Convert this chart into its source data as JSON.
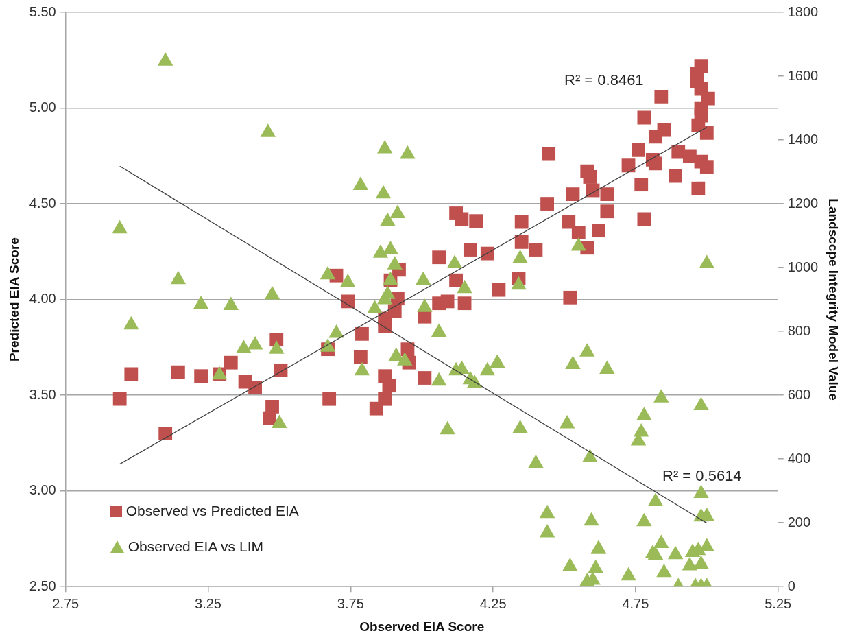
{
  "chart_data": {
    "type": "scatter",
    "xlabel": "Observed EIA Score",
    "ylabel": "Predicted EIA Score",
    "y2label": "Landsccpe Integrity Model Value",
    "xlim": [
      2.75,
      5.25
    ],
    "xticks": [
      2.75,
      3.25,
      3.75,
      4.25,
      4.75,
      5.25
    ],
    "ylim": [
      2.5,
      5.5
    ],
    "yticks": [
      {
        "value": 2.5,
        "label": "2.50"
      },
      {
        "value": 3,
        "label": "3.00"
      },
      {
        "value": 3.5,
        "label": "3.50"
      },
      {
        "value": 4,
        "label": "4.00"
      },
      {
        "value": 4.5,
        "label": "4.50"
      },
      {
        "value": 5,
        "label": "5.00"
      },
      {
        "value": 5.5,
        "label": "5.50"
      }
    ],
    "y2lim": [
      0,
      1800
    ],
    "y2ticks": [
      0,
      200,
      400,
      600,
      800,
      1000,
      1200,
      1400,
      1600,
      1800
    ],
    "grid": "y",
    "legend": "bottom left",
    "series": [
      {
        "name": "Observed vs Predicted EIA",
        "color": "#c0504d",
        "marker": "square",
        "x": [
          2.94,
          2.98,
          3.1,
          3.145,
          3.225,
          3.29,
          3.33,
          3.38,
          3.415,
          3.49,
          3.505,
          3.475,
          3.465,
          3.67,
          3.675,
          3.7,
          3.74,
          3.785,
          3.79,
          3.84,
          3.87,
          3.885,
          3.87,
          3.87,
          3.87,
          3.905,
          3.915,
          3.92,
          3.89,
          3.95,
          3.955,
          4.01,
          4.01,
          4.06,
          4.09,
          4.15,
          4.06,
          4.12,
          4.12,
          4.14,
          4.19,
          4.17,
          4.23,
          4.27,
          4.34,
          4.35,
          4.35,
          4.4,
          4.44,
          4.445,
          4.515,
          4.52,
          4.53,
          4.55,
          4.58,
          4.58,
          4.59,
          4.6,
          4.62,
          4.65,
          4.65,
          4.725,
          4.76,
          4.77,
          4.78,
          4.78,
          4.81,
          4.82,
          4.82,
          4.84,
          4.85,
          4.89,
          4.9,
          4.94,
          4.97,
          4.98,
          4.965,
          4.965,
          4.98,
          5.005,
          4.98,
          4.98,
          4.97,
          5.0,
          4.98,
          5.0
        ],
        "values": [
          3.48,
          3.61,
          3.3,
          3.62,
          3.6,
          3.61,
          3.67,
          3.57,
          3.54,
          3.79,
          3.63,
          3.44,
          3.38,
          3.74,
          3.48,
          4.125,
          3.99,
          3.7,
          3.82,
          3.43,
          3.6,
          3.55,
          3.48,
          3.86,
          3.9,
          3.94,
          4.005,
          4.155,
          4.1,
          3.74,
          3.67,
          3.59,
          3.91,
          3.98,
          3.99,
          3.98,
          4.22,
          4.1,
          4.45,
          4.42,
          4.41,
          4.26,
          4.24,
          4.05,
          4.11,
          4.3,
          4.405,
          4.26,
          4.5,
          4.76,
          4.405,
          4.01,
          4.55,
          4.35,
          4.27,
          4.67,
          4.64,
          4.57,
          4.36,
          4.55,
          4.46,
          4.7,
          4.78,
          4.6,
          4.42,
          4.95,
          4.73,
          4.71,
          4.85,
          5.06,
          4.885,
          4.645,
          4.77,
          4.75,
          4.58,
          5.22,
          5.18,
          5.14,
          5.1,
          5.05,
          5.0,
          4.96,
          4.91,
          4.87,
          4.72,
          4.69
        ]
      },
      {
        "name": "Observed EIA vs LIM",
        "color": "#9bbb59",
        "marker": "triangle",
        "axis": "y2",
        "x": [
          3.1,
          3.46,
          2.94,
          3.145,
          3.225,
          3.33,
          3.475,
          3.67,
          3.74,
          2.98,
          3.29,
          3.375,
          3.415,
          3.49,
          3.5,
          3.67,
          3.7,
          3.87,
          3.95,
          3.785,
          3.865,
          3.915,
          3.88,
          3.855,
          3.89,
          3.905,
          3.89,
          3.88,
          3.87,
          3.835,
          4.005,
          4.115,
          4.15,
          4.345,
          4.34,
          4.55,
          4.01,
          4.06,
          3.79,
          3.91,
          3.94,
          4.06,
          4.12,
          4.14,
          4.17,
          4.185,
          4.23,
          4.265,
          4.09,
          4.345,
          4.4,
          4.51,
          4.59,
          4.58,
          4.53,
          4.65,
          4.44,
          4.44,
          4.595,
          4.62,
          4.52,
          4.61,
          4.58,
          4.6,
          4.84,
          4.98,
          4.78,
          4.77,
          4.76,
          4.82,
          4.98,
          4.98,
          5.0,
          4.78,
          4.725,
          4.84,
          4.81,
          4.82,
          4.89,
          4.85,
          5.0,
          4.97,
          4.95,
          4.94,
          4.98,
          4.9,
          4.96,
          4.98,
          5.0,
          5.0
        ],
        "values": [
          1647,
          1423,
          1121,
          962,
          884,
          881,
          914,
          977,
          953,
          820,
          663,
          746,
          757,
          744,
          511,
          750,
          794,
          1372,
          1355,
          1257,
          1231,
          1169,
          1145,
          1045,
          1056,
          1008,
          960,
          916,
          899,
          870,
          960,
          1012,
          934,
          1028,
          945,
          1067,
          875,
          797,
          676,
          722,
          707,
          644,
          676,
          681,
          648,
          637,
          676,
          700,
          491,
          495,
          386,
          510,
          404,
          735,
          696,
          681,
          229,
          168,
          205,
          118,
          63,
          57,
          15,
          20,
          591,
          567,
          535,
          484,
          456,
          266,
          292,
          218,
          220,
          203,
          33,
          135,
          103,
          98,
          100,
          44,
          124,
          113,
          107,
          65,
          70,
          0,
          0,
          0,
          0,
          1012
        ]
      },
      {
        "type": "line",
        "color": "#404040",
        "marker": "none",
        "x": [
          2.94,
          5.0
        ],
        "values": [
          3.14,
          4.9
        ]
      },
      {
        "type": "line",
        "color": "#404040",
        "marker": "none",
        "axis": "y2",
        "x": [
          2.94,
          5.0
        ],
        "values": [
          1318,
          199
        ]
      }
    ],
    "annotations": [
      "R² = 0.8461",
      "R² = 0.5614"
    ]
  }
}
